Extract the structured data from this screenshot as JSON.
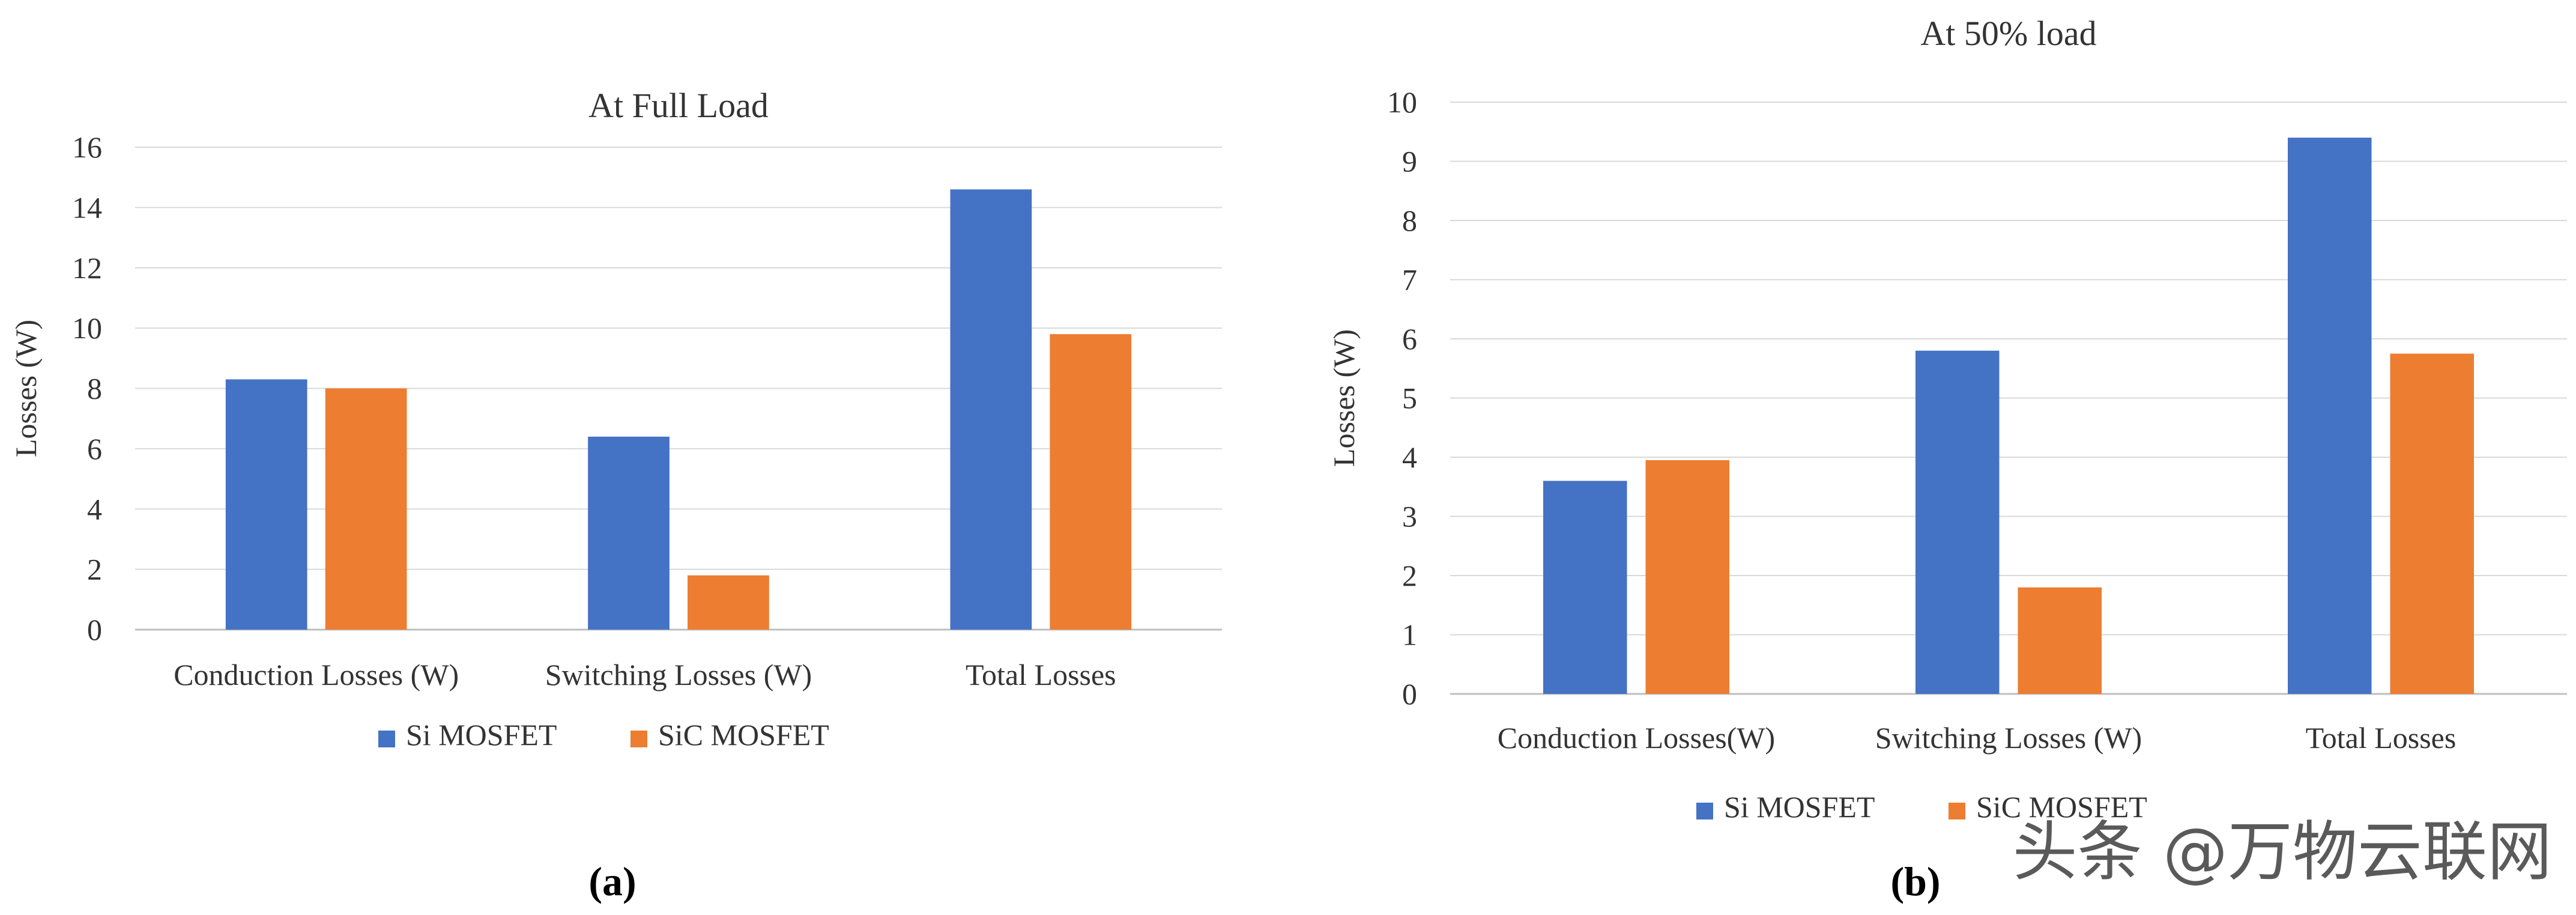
{
  "colors": {
    "si": "#4472C4",
    "sic": "#ED7D31",
    "grid": "#D9D9D9",
    "axis": "#BFBFBF",
    "text": "#333333"
  },
  "chart_data": [
    {
      "type": "bar",
      "title": "At Full Load",
      "ylabel": "Losses (W)",
      "xlabel": "",
      "categories": [
        "Conduction Losses (W)",
        "Switching Losses (W)",
        "Total Losses"
      ],
      "series": [
        {
          "name": "Si MOSFET",
          "values": [
            8.3,
            6.4,
            14.6
          ]
        },
        {
          "name": "SiC MOSFET",
          "values": [
            8.0,
            1.8,
            9.8
          ]
        }
      ],
      "ylim": [
        0,
        16
      ],
      "yticks": [
        "0",
        "2",
        "4",
        "6",
        "8",
        "10",
        "12",
        "14",
        "16"
      ],
      "grid": true,
      "legend": "bottom"
    },
    {
      "type": "bar",
      "title": "At 50% load",
      "ylabel": "Losses (W)",
      "xlabel": "",
      "categories": [
        "Conduction Losses(W)",
        "Switching Losses (W)",
        "Total Losses"
      ],
      "series": [
        {
          "name": "Si MOSFET",
          "values": [
            3.6,
            5.8,
            9.4
          ]
        },
        {
          "name": "SiC MOSFET",
          "values": [
            3.95,
            1.8,
            5.75
          ]
        }
      ],
      "ylim": [
        0,
        10
      ],
      "yticks": [
        "0",
        "1",
        "2",
        "3",
        "4",
        "5",
        "6",
        "7",
        "8",
        "9",
        "10"
      ],
      "grid": true,
      "legend": "bottom"
    }
  ],
  "captions": [
    "(a)",
    "(b)"
  ],
  "watermark": "头条 @万物云联网"
}
